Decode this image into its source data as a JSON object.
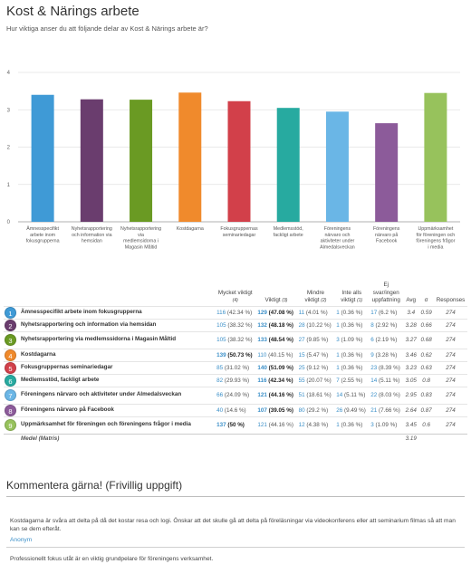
{
  "title": "Kost & Närings arbete",
  "subtitle": "Hur viktiga anser du att följande delar av Kost & Närings arbete är?",
  "chart_data": {
    "type": "bar",
    "ylim": [
      0,
      4
    ],
    "yticks": [
      "0",
      "1",
      "2",
      "3",
      "4"
    ],
    "grid": true,
    "categories": [
      "Ämnesspecifikt arbete inom fokusgrupperna",
      "Nyhetsrapportering och information via hemsidan",
      "Nyhetsrapportering via medlemsidorna i Magasin Måltid",
      "Kostdagarna",
      "Fokusgruppernas seminariedagar",
      "Medlemsstöd, fackligt arbete",
      "Föreningens närvaro och aktiviteter under Almedalsveckan",
      "Föreningens närvaro på Facebook",
      "Uppmärksamhet för föreningen och föreningens frågor i media"
    ],
    "category_lines": [
      [
        "Ämnesspecifikt",
        "arbete inom",
        "fokusgrupperna"
      ],
      [
        "Nyhetsrapportering",
        "och information via",
        "hemsidan"
      ],
      [
        "Nyhetsrapportering",
        "via",
        "medlemsidorna i",
        "Magasin Måltid"
      ],
      [
        "Kostdagarna"
      ],
      [
        "Fokusgruppernas",
        "seminariedagar"
      ],
      [
        "Medlemsstöd,",
        "fackligt arbete"
      ],
      [
        "Föreningens",
        "närvaro och",
        "aktiviteter under",
        "Almedalsveckan"
      ],
      [
        "Föreningens",
        "närvaro på",
        "Facebook"
      ],
      [
        "Uppmärksamhet",
        "för föreningen och",
        "föreningens frågor",
        "i media"
      ]
    ],
    "values": [
      3.4,
      3.28,
      3.27,
      3.46,
      3.23,
      3.05,
      2.95,
      2.64,
      3.45
    ],
    "colors": [
      "#3f9ad6",
      "#6a3d6e",
      "#6a9a23",
      "#f08a2c",
      "#d2404a",
      "#27aaa0",
      "#6ab6e6",
      "#8c5b9a",
      "#97c25c"
    ]
  },
  "table": {
    "headers": {
      "mycket": [
        "Mycket viktigt",
        "(4)"
      ],
      "viktigt": [
        "Viktigt",
        "(3)"
      ],
      "mindre": [
        "Mindre",
        "viktigt",
        "(2)"
      ],
      "inte": [
        "Inte alls",
        "viktigt",
        "(1)"
      ],
      "ej": [
        "Ej",
        "svar/ingen",
        "uppfattning"
      ],
      "avg": "Avg",
      "sigma": "σ",
      "responses": "Responses"
    },
    "rows": [
      {
        "num": "1",
        "label": "Ämnesspecifikt arbete inom fokusgrupperna",
        "c4": [
          "116",
          "(42.34 %)"
        ],
        "c3": [
          "129",
          "(47.08 %)"
        ],
        "c2": [
          "11",
          "(4.01 %)"
        ],
        "c1": [
          "1",
          "(0.36 %)"
        ],
        "c0": [
          "17",
          "(6.2 %)"
        ],
        "avg": "3.4",
        "sigma": "0.59",
        "responses": "274",
        "bold": "c3"
      },
      {
        "num": "2",
        "label": "Nyhetsrapportering och information via hemsidan",
        "c4": [
          "105",
          "(38.32 %)"
        ],
        "c3": [
          "132",
          "(48.18 %)"
        ],
        "c2": [
          "28",
          "(10.22 %)"
        ],
        "c1": [
          "1",
          "(0.36 %)"
        ],
        "c0": [
          "8",
          "(2.92 %)"
        ],
        "avg": "3.28",
        "sigma": "0.66",
        "responses": "274",
        "bold": "c3"
      },
      {
        "num": "3",
        "label": "Nyhetsrapportering via medlemssidorna i Magasin Måltid",
        "c4": [
          "105",
          "(38.32 %)"
        ],
        "c3": [
          "133",
          "(48.54 %)"
        ],
        "c2": [
          "27",
          "(9.85 %)"
        ],
        "c1": [
          "3",
          "(1.09 %)"
        ],
        "c0": [
          "6",
          "(2.19 %)"
        ],
        "avg": "3.27",
        "sigma": "0.68",
        "responses": "274",
        "bold": "c3"
      },
      {
        "num": "4",
        "label": "Kostdagarna",
        "c4": [
          "139",
          "(50.73 %)"
        ],
        "c3": [
          "110",
          "(40.15 %)"
        ],
        "c2": [
          "15",
          "(5.47 %)"
        ],
        "c1": [
          "1",
          "(0.36 %)"
        ],
        "c0": [
          "9",
          "(3.28 %)"
        ],
        "avg": "3.46",
        "sigma": "0.62",
        "responses": "274",
        "bold": "c4"
      },
      {
        "num": "5",
        "label": "Fokusgruppernas seminariedagar",
        "c4": [
          "85",
          "(31.02 %)"
        ],
        "c3": [
          "140",
          "(51.09 %)"
        ],
        "c2": [
          "25",
          "(9.12 %)"
        ],
        "c1": [
          "1",
          "(0.36 %)"
        ],
        "c0": [
          "23",
          "(8.39 %)"
        ],
        "avg": "3.23",
        "sigma": "0.63",
        "responses": "274",
        "bold": "c3"
      },
      {
        "num": "6",
        "label": "Medlemsstöd, fackligt arbete",
        "c4": [
          "82",
          "(29.93 %)"
        ],
        "c3": [
          "116",
          "(42.34 %)"
        ],
        "c2": [
          "55",
          "(20.07 %)"
        ],
        "c1": [
          "7",
          "(2.55 %)"
        ],
        "c0": [
          "14",
          "(5.11 %)"
        ],
        "avg": "3.05",
        "sigma": "0.8",
        "responses": "274",
        "bold": "c3"
      },
      {
        "num": "7",
        "label": "Föreningens närvaro och aktiviteter under Almedalsveckan",
        "c4": [
          "66",
          "(24.09 %)"
        ],
        "c3": [
          "121",
          "(44.16 %)"
        ],
        "c2": [
          "51",
          "(18.61 %)"
        ],
        "c1": [
          "14",
          "(5.11 %)"
        ],
        "c0": [
          "22",
          "(8.03 %)"
        ],
        "avg": "2.95",
        "sigma": "0.83",
        "responses": "274",
        "bold": "c3"
      },
      {
        "num": "8",
        "label": "Föreningens närvaro på Facebook",
        "c4": [
          "40",
          "(14.6 %)"
        ],
        "c3": [
          "107",
          "(39.05 %)"
        ],
        "c2": [
          "80",
          "(29.2 %)"
        ],
        "c1": [
          "26",
          "(9.49 %)"
        ],
        "c0": [
          "21",
          "(7.66 %)"
        ],
        "avg": "2.64",
        "sigma": "0.87",
        "responses": "274",
        "bold": "c3"
      },
      {
        "num": "9",
        "label": "Uppmärksamhet för föreningen och föreningens frågor i media",
        "c4": [
          "137",
          "(50 %)"
        ],
        "c3": [
          "121",
          "(44.16 %)"
        ],
        "c2": [
          "12",
          "(4.38 %)"
        ],
        "c1": [
          "1",
          "(0.36 %)"
        ],
        "c0": [
          "3",
          "(1.09 %)"
        ],
        "avg": "3.45",
        "sigma": "0.6",
        "responses": "274",
        "bold": "c4"
      }
    ],
    "medel_label": "Medel (Matris)",
    "medel_avg": "3.19"
  },
  "comments": {
    "heading": "Kommentera gärna! (Frivillig uppgift)",
    "items": [
      {
        "text": "Kostdagarna är svåra att delta på då det kostar resa och logi. Önskar att det skulle gå att delta på föreläsningar via videokonferens eller att seminarium filmas så att man kan se dem efteråt.",
        "author": "Anonym"
      },
      {
        "text": "Professionellt fokus utåt är en viktig grundpelare för föreningens verksamhet."
      }
    ]
  }
}
